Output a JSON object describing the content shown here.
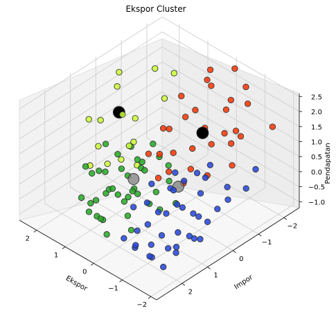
{
  "chart_data": {
    "type": "scatter3d",
    "title": "Ekspor Cluster",
    "xlabel": "Ekspor",
    "ylabel": "Impor",
    "zlabel": "Pendapatan",
    "xlim": [
      -2.2,
      2.6
    ],
    "ylim": [
      -2.6,
      3.0
    ],
    "zlim": [
      -1.2,
      2.6
    ],
    "xticks": [
      "2",
      "1",
      "0",
      "−1",
      "−2"
    ],
    "xtick_values": [
      2,
      1,
      0,
      -1,
      -2
    ],
    "yticks": [
      "−2",
      "−1",
      "0",
      "1",
      "2"
    ],
    "ytick_values": [
      -2,
      -1,
      0,
      1,
      2
    ],
    "zticks": [
      "−1.0",
      "−0.5",
      "0.0",
      "0.5",
      "1.0",
      "1.5",
      "2.0",
      "2.5"
    ],
    "ztick_values": [
      -1.0,
      -0.5,
      0.0,
      0.5,
      1.0,
      1.5,
      2.0,
      2.5
    ],
    "grid": true,
    "colors": {
      "yellow": "#ccff33",
      "red": "#ff3300",
      "green": "#22aa22",
      "blue": "#2244dd",
      "centroid_large": "#000000",
      "centroid_small": "#777777",
      "edge": "#333333"
    },
    "series": [
      {
        "color": "yellow",
        "points": [
          [
            2.5,
            -0.8,
            1.7
          ],
          [
            2.3,
            -0.5,
            1.5
          ],
          [
            1.6,
            -1.2,
            2.1
          ],
          [
            1.2,
            -1.5,
            2.0
          ],
          [
            1.0,
            -0.9,
            1.6
          ],
          [
            1.4,
            0.3,
            1.5
          ],
          [
            1.9,
            0.6,
            1.2
          ],
          [
            2.4,
            0.5,
            0.9
          ],
          [
            1.8,
            0.8,
            0.5
          ],
          [
            1.1,
            0.2,
            0.7
          ],
          [
            0.9,
            0.6,
            0.9
          ],
          [
            1.3,
            1.0,
            0.3
          ],
          [
            0.8,
            0.4,
            0.2
          ],
          [
            2.0,
            0.9,
            -0.2
          ],
          [
            1.0,
            0.8,
            0.5
          ],
          [
            1.4,
            -0.2,
            1.1
          ]
        ]
      },
      {
        "color": "red",
        "points": [
          [
            0.2,
            -1.8,
            2.5
          ],
          [
            -0.1,
            -1.5,
            2.3
          ],
          [
            -0.3,
            -2.2,
            2.6
          ],
          [
            0.5,
            -1.0,
            1.9
          ],
          [
            -0.8,
            -1.3,
            2.0
          ],
          [
            -1.2,
            -1.7,
            2.2
          ],
          [
            0.0,
            -0.6,
            1.7
          ],
          [
            -0.5,
            -0.8,
            1.5
          ],
          [
            -1.5,
            -0.9,
            1.9
          ],
          [
            -1.8,
            -2.0,
            1.6
          ],
          [
            0.3,
            -0.3,
            1.3
          ],
          [
            -0.6,
            -0.2,
            1.2
          ],
          [
            -1.0,
            -0.5,
            1.4
          ],
          [
            -1.6,
            -0.6,
            1.7
          ],
          [
            -0.2,
            0.1,
            1.0
          ],
          [
            -0.9,
            0.2,
            0.9
          ],
          [
            -1.9,
            -0.3,
            1.3
          ],
          [
            0.4,
            0.4,
            0.8
          ],
          [
            -0.4,
            0.5,
            0.7
          ],
          [
            -1.3,
            0.0,
            0.8
          ],
          [
            0.1,
            -1.1,
            1.6
          ],
          [
            -0.7,
            -1.6,
            2.1
          ],
          [
            0.6,
            -0.4,
            1.1
          ],
          [
            -1.1,
            -0.9,
            1.6
          ],
          [
            0.1,
            0.3,
            0.9
          ],
          [
            -0.3,
            0.8,
            0.6
          ],
          [
            -1.0,
            0.6,
            0.7
          ],
          [
            0.4,
            -1.9,
            2.0
          ],
          [
            -0.6,
            -2.3,
            2.1
          ],
          [
            -1.4,
            -1.2,
            1.5
          ]
        ]
      },
      {
        "color": "green",
        "points": [
          [
            1.5,
            1.8,
            -0.5
          ],
          [
            1.0,
            2.0,
            -0.3
          ],
          [
            0.6,
            2.2,
            -0.4
          ],
          [
            0.2,
            2.5,
            -0.1
          ],
          [
            -0.1,
            2.6,
            -0.4
          ],
          [
            0.8,
            1.5,
            0.0
          ],
          [
            1.2,
            1.2,
            0.2
          ],
          [
            0.4,
            1.6,
            0.1
          ],
          [
            0.0,
            1.8,
            0.2
          ],
          [
            -0.3,
            2.0,
            0.0
          ],
          [
            -0.6,
            2.2,
            -0.2
          ],
          [
            0.9,
            0.9,
            0.3
          ],
          [
            0.5,
            1.1,
            0.4
          ],
          [
            0.1,
            1.3,
            0.3
          ],
          [
            -0.2,
            1.5,
            0.4
          ],
          [
            1.3,
            0.6,
            0.4
          ],
          [
            0.7,
            0.5,
            0.5
          ],
          [
            0.3,
            0.8,
            0.6
          ],
          [
            -0.4,
            1.0,
            0.3
          ],
          [
            -0.8,
            1.3,
            0.1
          ],
          [
            1.6,
            1.0,
            -0.1
          ],
          [
            1.1,
            0.3,
            0.6
          ],
          [
            0.2,
            0.2,
            0.7
          ],
          [
            -0.5,
            0.6,
            0.5
          ],
          [
            -1.0,
            0.9,
            0.2
          ],
          [
            0.6,
            0.0,
            0.8
          ],
          [
            0.9,
            1.9,
            -0.2
          ],
          [
            0.3,
            2.3,
            -0.3
          ],
          [
            -0.2,
            1.7,
            0.6
          ],
          [
            1.4,
            1.5,
            0.2
          ],
          [
            0.0,
            1.0,
            0.8
          ],
          [
            0.5,
            1.7,
            0.3
          ],
          [
            -0.7,
            1.6,
            0.4
          ],
          [
            1.8,
            1.3,
            0.1
          ],
          [
            0.7,
            2.4,
            -0.2
          ],
          [
            1.9,
            0.4,
            0.3
          ],
          [
            -0.3,
            0.4,
            0.8
          ],
          [
            0.8,
            0.2,
            0.2
          ],
          [
            0.4,
            1.2,
            -0.2
          ],
          [
            1.0,
            1.4,
            -0.3
          ]
        ]
      },
      {
        "color": "blue",
        "points": [
          [
            -1.2,
            1.5,
            0.3
          ],
          [
            -1.5,
            1.2,
            0.5
          ],
          [
            -1.8,
            0.9,
            0.2
          ],
          [
            -2.1,
            0.5,
            0.4
          ],
          [
            -1.0,
            2.0,
            0.1
          ],
          [
            -1.4,
            1.9,
            -0.1
          ],
          [
            -1.7,
            1.6,
            0.0
          ],
          [
            -2.0,
            1.3,
            -0.2
          ],
          [
            -0.8,
            1.8,
            0.6
          ],
          [
            -1.1,
            1.1,
            0.8
          ],
          [
            -1.6,
            0.6,
            0.7
          ],
          [
            -2.2,
            0.2,
            0.6
          ],
          [
            -0.9,
            2.3,
            0.0
          ],
          [
            -1.3,
            2.2,
            -0.3
          ],
          [
            -1.9,
            1.9,
            -0.4
          ],
          [
            -2.1,
            1.6,
            0.1
          ],
          [
            -0.6,
            1.4,
            0.9
          ],
          [
            -1.2,
            0.8,
            1.0
          ],
          [
            -1.5,
            0.3,
            1.0
          ],
          [
            -2.0,
            0.0,
            0.8
          ],
          [
            -2.3,
            -0.4,
            0.7
          ],
          [
            -0.7,
            2.6,
            -0.2
          ],
          [
            -1.0,
            2.5,
            -0.4
          ],
          [
            -1.5,
            2.4,
            -0.5
          ],
          [
            -1.8,
            2.1,
            -0.2
          ],
          [
            -1.1,
            1.7,
            0.4
          ],
          [
            -1.4,
            1.3,
            0.6
          ],
          [
            -1.7,
            1.0,
            0.3
          ],
          [
            -0.5,
            2.0,
            0.4
          ],
          [
            -1.9,
            2.4,
            -0.6
          ],
          [
            -2.2,
            1.0,
            0.3
          ],
          [
            -1.3,
            0.4,
            1.1
          ],
          [
            -0.9,
            1.0,
            0.7
          ],
          [
            -2.0,
            2.0,
            -0.1
          ],
          [
            -1.6,
            2.6,
            -0.3
          ],
          [
            -0.8,
            0.7,
            1.0
          ],
          [
            -1.2,
            2.7,
            -0.1
          ],
          [
            -2.3,
            1.4,
            0.0
          ],
          [
            -2.1,
            -1.0,
            0.9
          ],
          [
            -1.4,
            0.0,
            1.2
          ]
        ]
      }
    ],
    "centroids": [
      {
        "color": "centroid_large",
        "size": 8.5,
        "point": [
          1.7,
          0.1,
          1.3
        ]
      },
      {
        "color": "centroid_large",
        "size": 8.5,
        "point": [
          -0.6,
          -0.6,
          1.5
        ]
      },
      {
        "color": "centroid_small",
        "size": 8,
        "point": [
          0.3,
          1.1,
          0.4
        ]
      },
      {
        "color": "centroid_small",
        "size": 8,
        "point": [
          -1.0,
          0.8,
          0.7
        ]
      }
    ]
  }
}
